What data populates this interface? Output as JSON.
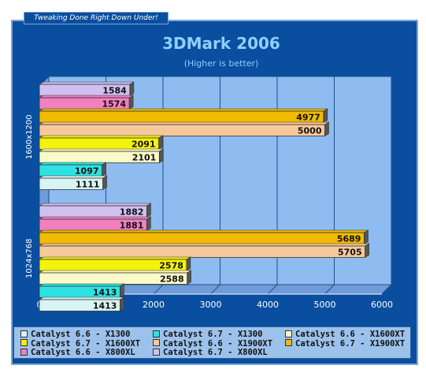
{
  "banner": "Tweaking Done Right Down Under!",
  "chart_data": {
    "type": "bar",
    "orientation": "horizontal",
    "title": "3DMark 2006",
    "subtitle": "(Higher is better)",
    "xlim": [
      0,
      6000
    ],
    "xticks": [
      "0",
      "1000",
      "2000",
      "3000",
      "4000",
      "5000",
      "6000"
    ],
    "grid": true,
    "legend_position": "bottom",
    "groups": [
      {
        "label": "1600x1200",
        "bars": [
          {
            "series": "Catalyst 6.7  -  X800XL",
            "value": 1584
          },
          {
            "series": "Catalyst 6.6  -  X800XL",
            "value": 1574
          },
          {
            "series": "Catalyst 6.7  -  X1900XT",
            "value": 4977
          },
          {
            "series": "Catalyst 6.6  -  X1900XT",
            "value": 5000
          },
          {
            "series": "Catalyst 6.7  -  X1600XT",
            "value": 2091
          },
          {
            "series": "Catalyst 6.6  -  X1600XT",
            "value": 2101
          },
          {
            "series": "Catalyst 6.7  -  X1300",
            "value": 1097
          },
          {
            "series": "Catalyst 6.6  -  X1300",
            "value": 1111
          }
        ]
      },
      {
        "label": "1024x768",
        "bars": [
          {
            "series": "Catalyst 6.7  -  X800XL",
            "value": 1882
          },
          {
            "series": "Catalyst 6.6  -  X800XL",
            "value": 1881
          },
          {
            "series": "Catalyst 6.7  -  X1900XT",
            "value": 5689
          },
          {
            "series": "Catalyst 6.6  -  X1900XT",
            "value": 5705
          },
          {
            "series": "Catalyst 6.7  -  X1600XT",
            "value": 2578
          },
          {
            "series": "Catalyst 6.6  -  X1600XT",
            "value": 2588
          },
          {
            "series": "Catalyst 6.7  -  X1300",
            "value": 1413
          },
          {
            "series": "Catalyst 6.6  -  X1300",
            "value": 1413
          }
        ]
      }
    ],
    "legend": [
      {
        "name": "Catalyst 6.6  -  X1300",
        "color": "#d8f4f4"
      },
      {
        "name": "Catalyst 6.7  -  X1300",
        "color": "#2fe2e2"
      },
      {
        "name": "Catalyst 6.6  -  X1600XT",
        "color": "#fafac8"
      },
      {
        "name": "Catalyst 6.7  -  X1600XT",
        "color": "#f4f20a"
      },
      {
        "name": "Catalyst 6.6  -  X1900XT",
        "color": "#f6c89a"
      },
      {
        "name": "Catalyst 6.7  -  X1900XT",
        "color": "#f0bb00"
      },
      {
        "name": "Catalyst 6.6  -  X800XL",
        "color": "#f080c0"
      },
      {
        "name": "Catalyst 6.7  -  X800XL",
        "color": "#d0c0f0"
      }
    ]
  },
  "colors": {
    "frame": "#0a4ea0",
    "plot_bg": "#8fbcf0",
    "grid": "#1f4f8a",
    "title": "#8fd0ff"
  }
}
